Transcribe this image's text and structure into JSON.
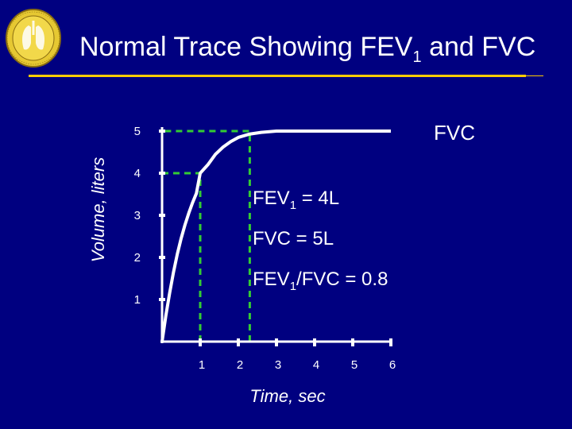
{
  "slide": {
    "title_main": "Normal Trace Showing FEV",
    "title_sub": "1",
    "title_rest": " and FVC"
  },
  "colors": {
    "background": "#000080",
    "title_rule": "#ffcc00",
    "curve": "#ffffff",
    "guide_lines": "#33cc33"
  },
  "chart_data": {
    "type": "line",
    "xlabel": "Time, sec",
    "ylabel": "Volume, liters",
    "xlim": [
      0,
      6
    ],
    "ylim": [
      0,
      5
    ],
    "x_ticks": [
      1,
      2,
      3,
      4,
      5,
      6
    ],
    "y_ticks": [
      1,
      2,
      3,
      4,
      5
    ],
    "grid": false,
    "series": [
      {
        "x": [
          0,
          0.1,
          0.2,
          0.3,
          0.4,
          0.5,
          0.6,
          0.7,
          0.8,
          0.9,
          1.0,
          1.2,
          1.4,
          1.6,
          1.8,
          2.0,
          2.3,
          2.6,
          3.0,
          6.0
        ],
        "y": [
          0,
          0.62,
          1.16,
          1.65,
          2.08,
          2.45,
          2.77,
          3.05,
          3.3,
          3.52,
          4.0,
          4.2,
          4.45,
          4.62,
          4.75,
          4.85,
          4.93,
          4.97,
          5.0,
          5.0
        ]
      }
    ],
    "annotations": {
      "fvc_label": "FVC",
      "fev1_line": {
        "pre": "FEV",
        "sub": "1",
        "post": " = 4L"
      },
      "fvc_line": "FVC = 5L",
      "ratio_line": {
        "pre": "FEV",
        "sub": "1",
        "post": "/FVC = 0.8"
      }
    },
    "guides": [
      {
        "x": 1,
        "y": 4
      },
      {
        "x": 2.3,
        "y": 5
      }
    ]
  }
}
